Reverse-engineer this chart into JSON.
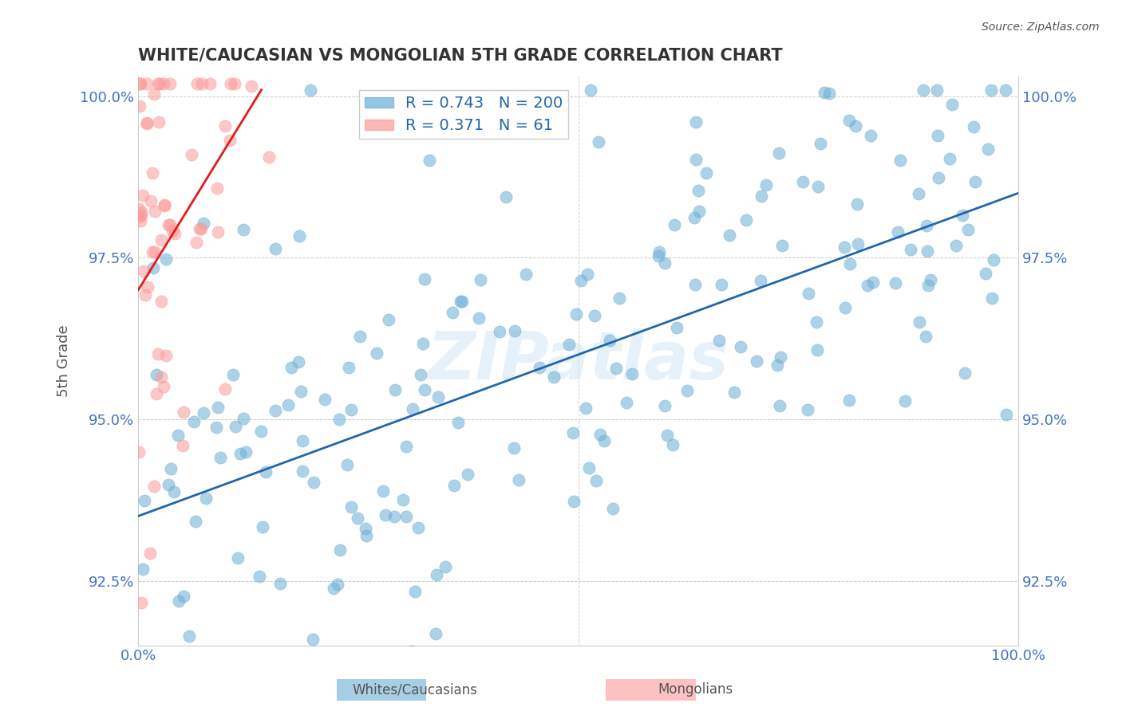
{
  "title": "WHITE/CAUCASIAN VS MONGOLIAN 5TH GRADE CORRELATION CHART",
  "source_text": "Source: ZipAtlas.com",
  "xlabel": "",
  "ylabel": "5th Grade",
  "xlim": [
    0.0,
    1.0
  ],
  "ylim": [
    0.915,
    1.003
  ],
  "yticks": [
    0.925,
    0.95,
    0.975,
    1.0
  ],
  "ytick_labels": [
    "92.5%",
    "95.0%",
    "97.5%",
    "100.0%"
  ],
  "xtick_labels": [
    "0.0%",
    "100.0%"
  ],
  "xticks": [
    0.0,
    1.0
  ],
  "blue_R": 0.743,
  "blue_N": 200,
  "pink_R": 0.371,
  "pink_N": 61,
  "blue_color": "#6baed6",
  "pink_color": "#fb9a99",
  "blue_line_color": "#2166ac",
  "pink_line_color": "#e31a1c",
  "watermark_text": "ZIPatlas",
  "background_color": "#ffffff",
  "grid_color": "#cccccc",
  "legend_R_color": "#2166ac",
  "legend_N_color": "#ff0000",
  "title_color": "#333333",
  "axis_color": "#4472c4",
  "ylabel_color": "#555555"
}
